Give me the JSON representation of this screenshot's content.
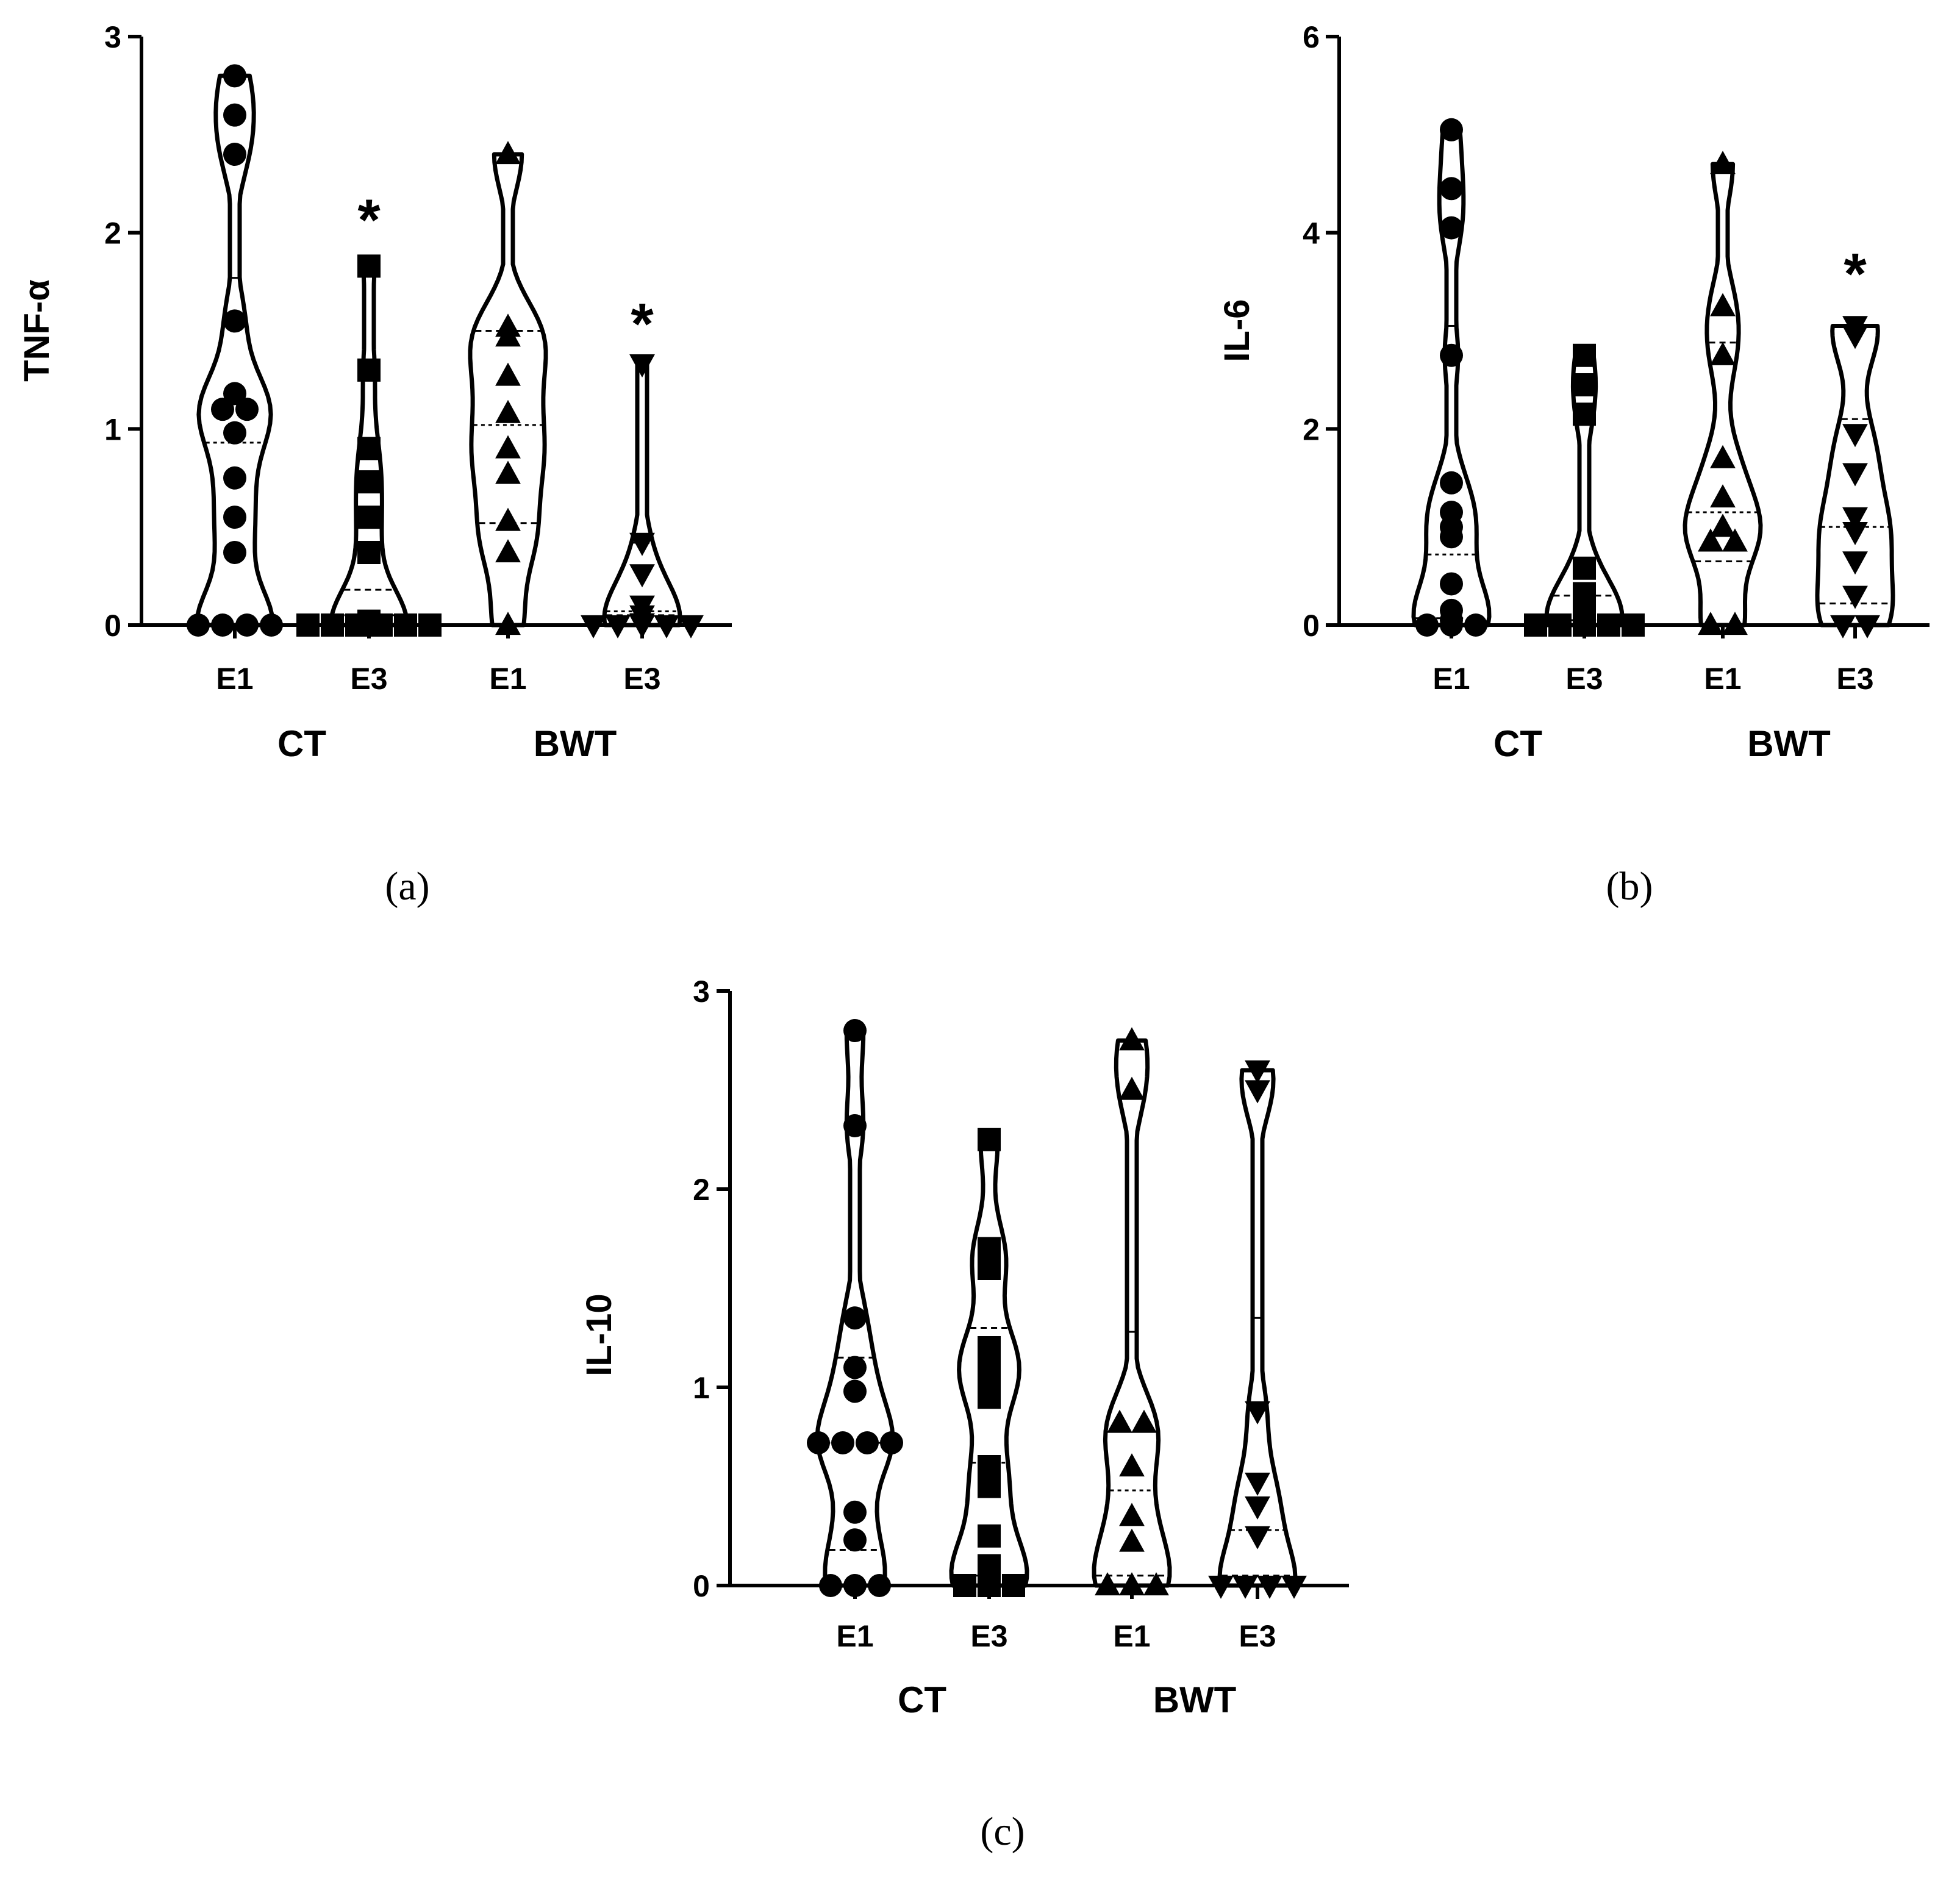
{
  "chart_data": [
    {
      "id": "a",
      "type": "violin",
      "panel_label": "(a)",
      "ylabel": "TNF-α",
      "ylim": [
        0,
        3
      ],
      "yticks": [
        0,
        1,
        2,
        3
      ],
      "groups": [
        "CT",
        "BWT"
      ],
      "categories": [
        "E1",
        "E3",
        "E1",
        "E3"
      ],
      "series": [
        {
          "group": "CT",
          "category": "E1",
          "marker": "circle",
          "values": [
            2.8,
            2.6,
            2.4,
            1.55,
            1.18,
            1.1,
            1.1,
            0.98,
            0.75,
            0.55,
            0.37,
            0,
            0,
            0,
            0
          ],
          "range": [
            0,
            2.8
          ],
          "quartiles": [
            0,
            0.93,
            1.77
          ]
        },
        {
          "group": "CT",
          "category": "E3",
          "marker": "square",
          "values": [
            1.83,
            1.3,
            0.9,
            0.73,
            0.55,
            0.37,
            0.02,
            0,
            0,
            0,
            0,
            0,
            0
          ],
          "range": [
            0,
            1.83
          ],
          "quartiles": [
            0,
            0.05,
            0.18
          ]
        },
        {
          "group": "BWT",
          "category": "E1",
          "marker": "triangle-up",
          "values": [
            2.4,
            1.52,
            1.47,
            1.27,
            1.08,
            0.9,
            0.77,
            0.53,
            0.37,
            0
          ],
          "range": [
            0,
            2.4
          ],
          "quartiles": [
            0.52,
            1.02,
            1.5
          ]
        },
        {
          "group": "BWT",
          "category": "E3",
          "marker": "triangle-down",
          "values": [
            1.33,
            0.42,
            0.26,
            0.1,
            0.05,
            0.01,
            0,
            0,
            0,
            0,
            0
          ],
          "range": [
            0,
            1.35
          ],
          "quartiles": [
            0.05,
            0.07,
            0.42
          ]
        }
      ],
      "significance": [
        {
          "category_index": 1,
          "label": "*",
          "y": 2.15
        },
        {
          "category_index": 3,
          "label": "*",
          "y": 1.62
        }
      ]
    },
    {
      "id": "b",
      "type": "violin",
      "panel_label": "(b)",
      "ylabel": "IL-6",
      "ylim": [
        0,
        6
      ],
      "yticks": [
        0,
        2,
        4,
        6
      ],
      "groups": [
        "CT",
        "BWT"
      ],
      "categories": [
        "E1",
        "E3",
        "E1",
        "E3"
      ],
      "series": [
        {
          "group": "CT",
          "category": "E1",
          "marker": "circle",
          "values": [
            5.05,
            4.45,
            4.05,
            2.75,
            1.45,
            1.15,
            1.0,
            0.9,
            0.42,
            0.15,
            0.05,
            0,
            0,
            0
          ],
          "range": [
            0,
            5.05
          ],
          "quartiles": [
            0.07,
            0.72,
            3.05
          ]
        },
        {
          "group": "CT",
          "category": "E3",
          "marker": "square",
          "values": [
            2.75,
            2.45,
            2.15,
            0.58,
            0.32,
            0.1,
            0.08,
            0,
            0,
            0,
            0,
            0
          ],
          "range": [
            0,
            2.75
          ],
          "quartiles": [
            0,
            0.05,
            0.3
          ]
        },
        {
          "group": "BWT",
          "category": "E1",
          "marker": "triangle-up",
          "values": [
            4.7,
            3.25,
            2.75,
            1.7,
            1.3,
            1.0,
            0.85,
            0.85,
            0,
            0
          ],
          "range": [
            0,
            4.7
          ],
          "quartiles": [
            0.65,
            1.15,
            2.88
          ]
        },
        {
          "group": "BWT",
          "category": "E3",
          "marker": "triangle-down",
          "values": [
            3.05,
            2.95,
            1.95,
            1.55,
            1.1,
            0.95,
            0.65,
            0.3,
            0,
            0
          ],
          "range": [
            0,
            3.05
          ],
          "quartiles": [
            0.22,
            1.0,
            2.1
          ]
        }
      ],
      "significance": [
        {
          "category_index": 3,
          "label": "*",
          "y": 3.75
        }
      ]
    },
    {
      "id": "c",
      "type": "violin",
      "panel_label": "(c)",
      "ylabel": "IL-10",
      "ylim": [
        0,
        3
      ],
      "yticks": [
        0,
        1,
        2,
        3
      ],
      "groups": [
        "CT",
        "BWT"
      ],
      "categories": [
        "E1",
        "E3",
        "E1",
        "E3"
      ],
      "series": [
        {
          "group": "CT",
          "category": "E1",
          "marker": "circle",
          "values": [
            2.8,
            2.32,
            1.35,
            1.1,
            0.98,
            0.72,
            0.72,
            0.72,
            0.72,
            0.37,
            0.23,
            0,
            0,
            0
          ],
          "range": [
            0,
            2.8
          ],
          "quartiles": [
            0.18,
            0.72,
            1.15
          ]
        },
        {
          "group": "CT",
          "category": "E3",
          "marker": "square",
          "values": [
            2.25,
            1.7,
            1.6,
            1.2,
            1.15,
            1.05,
            0.95,
            0.6,
            0.5,
            0.25,
            0.1,
            0,
            0,
            0
          ],
          "range": [
            0,
            2.25
          ],
          "quartiles": [
            0.05,
            0.62,
            1.3
          ]
        },
        {
          "group": "BWT",
          "category": "E1",
          "marker": "triangle-up",
          "values": [
            2.75,
            2.5,
            0.82,
            0.82,
            0.6,
            0.35,
            0.22,
            0,
            0,
            0
          ],
          "range": [
            0,
            2.75
          ],
          "quartiles": [
            0.05,
            0.48,
            1.28
          ]
        },
        {
          "group": "BWT",
          "category": "E3",
          "marker": "triangle-down",
          "values": [
            2.6,
            2.5,
            0.88,
            0.52,
            0.4,
            0.25,
            0,
            0,
            0,
            0
          ],
          "range": [
            0,
            2.6
          ],
          "quartiles": [
            0.05,
            0.28,
            1.35
          ]
        }
      ],
      "significance": []
    }
  ]
}
